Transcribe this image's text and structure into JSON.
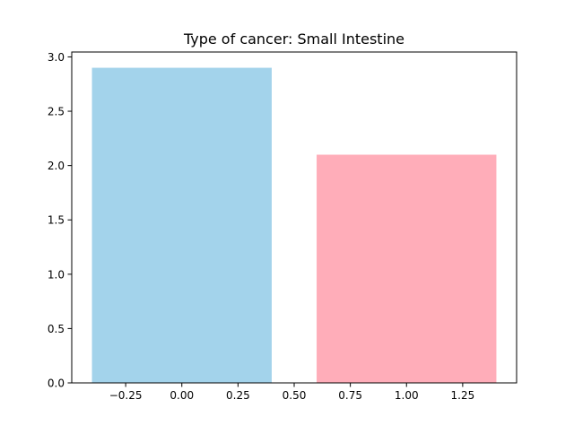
{
  "chart_data": {
    "type": "bar",
    "title": "Type of cancer: Small Intestine",
    "xlabel": "",
    "ylabel": "",
    "x": [
      0,
      1
    ],
    "values": [
      2.9,
      2.1
    ],
    "bar_width": 0.8,
    "colors": [
      "#a3d3eb",
      "#ffadb9"
    ],
    "xlim": [
      -0.49,
      1.49
    ],
    "ylim": [
      0,
      3.045
    ],
    "xticks": [
      -0.25,
      0.0,
      0.25,
      0.5,
      0.75,
      1.0,
      1.25
    ],
    "xtick_labels": [
      "−0.25",
      "0.00",
      "0.25",
      "0.50",
      "0.75",
      "1.00",
      "1.25"
    ],
    "yticks": [
      0.0,
      0.5,
      1.0,
      1.5,
      2.0,
      2.5,
      3.0
    ],
    "ytick_labels": [
      "0.0",
      "0.5",
      "1.0",
      "1.5",
      "2.0",
      "2.5",
      "3.0"
    ],
    "grid": false,
    "legend": "none"
  }
}
